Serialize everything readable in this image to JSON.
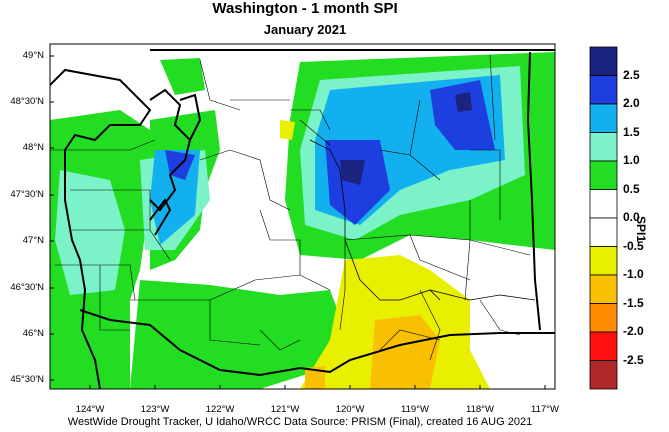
{
  "title": "Washington - 1 month SPI",
  "subtitle": "January 2021",
  "credit": "WestWide Drought Tracker, U Idaho/WRCC Data Source: PRISM (Final), created 16 AUG 2021",
  "legend": {
    "title": "SPI1",
    "levels": [
      {
        "label": "2.5",
        "color": "#1a237e"
      },
      {
        "label": "2.0",
        "color": "#1e3fe0"
      },
      {
        "label": "1.5",
        "color": "#12b0ee"
      },
      {
        "label": "1.0",
        "color": "#7cf2c8"
      },
      {
        "label": "0.5",
        "color": "#22dd22"
      },
      {
        "label": "0.0",
        "color": "#ffffff"
      },
      {
        "label": "-0.5",
        "color": "#ffffff"
      },
      {
        "label": "-1.0",
        "color": "#e8f000"
      },
      {
        "label": "-1.5",
        "color": "#f8c000"
      },
      {
        "label": "-2.0",
        "color": "#ff8c00"
      },
      {
        "label": "-2.5",
        "color": "#ff1010"
      },
      {
        "label": "",
        "color": "#b02828"
      }
    ]
  },
  "axes": {
    "lat_labels": [
      "49°N",
      "48°30'N",
      "48°N",
      "47°30'N",
      "47°N",
      "46°30'N",
      "46°N",
      "45°30'N"
    ],
    "lon_labels": [
      "124°W",
      "123°W",
      "122°W",
      "121°W",
      "120°W",
      "119°W",
      "118°W",
      "117°W"
    ]
  }
}
